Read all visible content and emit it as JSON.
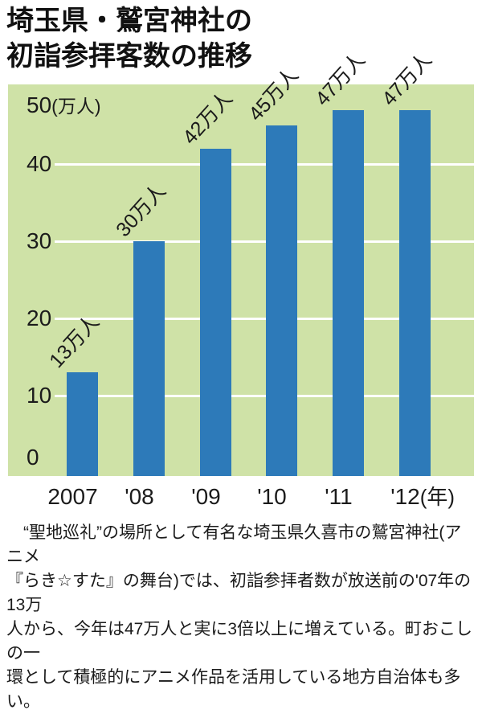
{
  "title": {
    "line1": "埼玉県・鷲宮神社の",
    "line2": "初詣参拝客数の推移"
  },
  "chart_data": {
    "type": "bar",
    "title": "埼玉県・鷲宮神社の初詣参拝客数の推移",
    "categories": [
      "2007",
      "'08",
      "'09",
      "'10",
      "'11",
      "'12"
    ],
    "values": [
      13,
      30,
      42,
      45,
      47,
      47
    ],
    "bar_labels": [
      "13万人",
      "30万人",
      "42万人",
      "45万人",
      "47万人",
      "47万人"
    ],
    "y_axis": {
      "top_tick": "50",
      "unit": "(万人)",
      "ticks": [
        40,
        30,
        20,
        10
      ],
      "zero_label": "0"
    },
    "x_axis_suffix": "(年)",
    "ylim": [
      0,
      50
    ],
    "grid": true,
    "bar_color": "#2d7ab9",
    "plot_bg": "#cfe2a7",
    "gridline_color": "#ffffff",
    "label_rotation_deg": -48
  },
  "caption": {
    "lines": [
      "　“聖地巡礼”の場所として有名な埼玉県久喜市の鷲宮神社(アニメ",
      "『らき☆すた』の舞台)では、初詣参拝者数が放送前の'07年の13万",
      "人から、今年は47万人と実に3倍以上に増えている。町おこしの一",
      "環として積極的にアニメ作品を活用している地方自治体も多い。"
    ]
  }
}
